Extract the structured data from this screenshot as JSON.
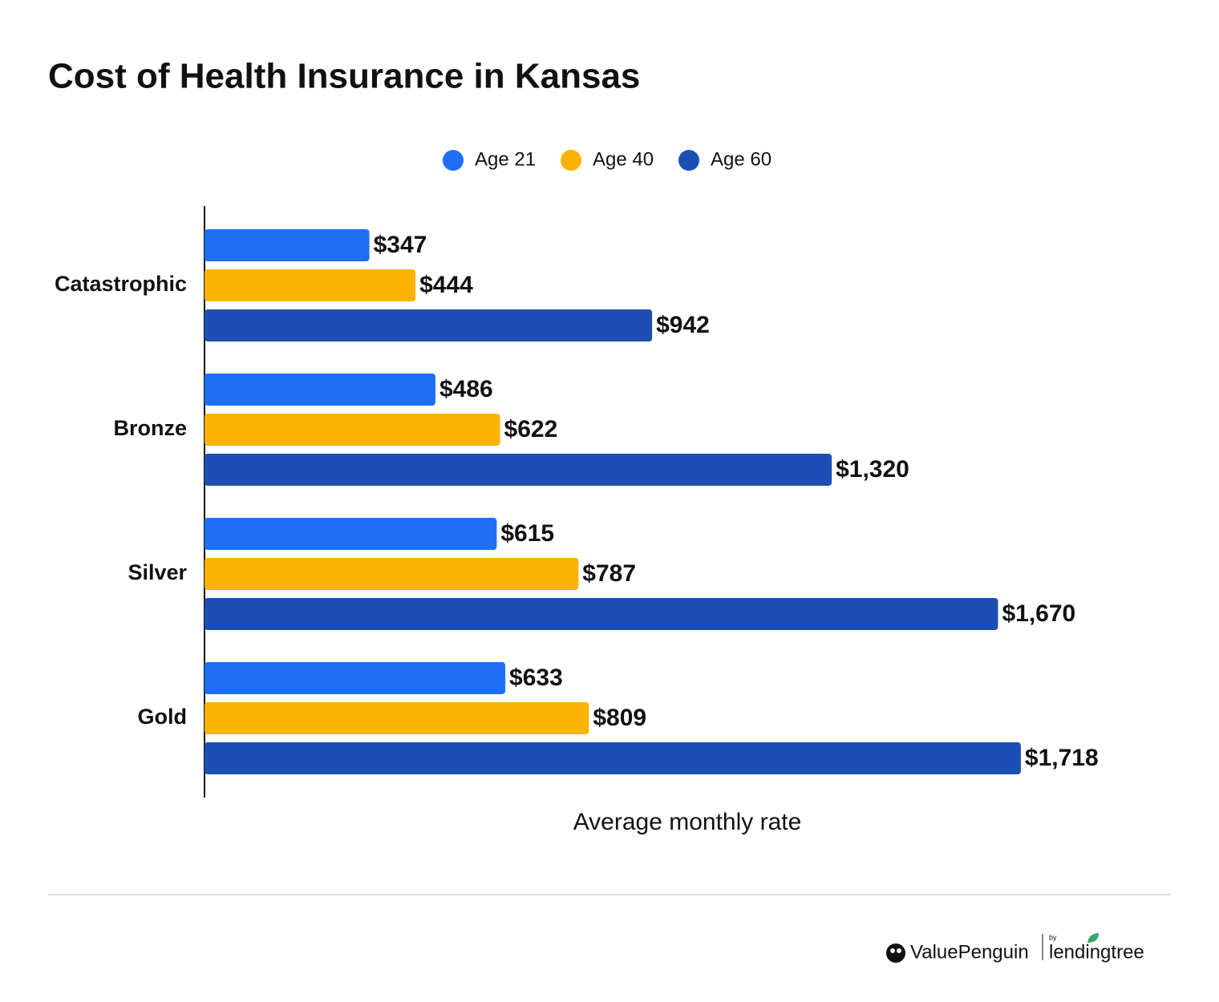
{
  "chart_data": {
    "type": "bar",
    "orientation": "horizontal",
    "title": "Cost of Health Insurance in Kansas",
    "x_label": "Average monthly rate",
    "categories": [
      "Catastrophic",
      "Bronze",
      "Silver",
      "Gold"
    ],
    "series": [
      {
        "name": "Age 21",
        "color": "#1f6ff5",
        "values": [
          347,
          486,
          615,
          633
        ],
        "value_labels": [
          "$347",
          "$486",
          "$615",
          "$633"
        ]
      },
      {
        "name": "Age 40",
        "color": "#f9b300",
        "values": [
          444,
          622,
          787,
          809
        ],
        "value_labels": [
          "$444",
          "$622",
          "$787",
          "$809"
        ]
      },
      {
        "name": "Age 60",
        "color": "#1c4fb3",
        "values": [
          942,
          1320,
          1670,
          1718
        ],
        "value_labels": [
          "$942",
          "$1,320",
          "$1,670",
          "$1,718"
        ]
      }
    ],
    "xlim": [
      0,
      2000
    ],
    "legend": "top"
  },
  "brand": {
    "name": "ValuePenguin",
    "by": "by",
    "partner": "lendingtree"
  }
}
